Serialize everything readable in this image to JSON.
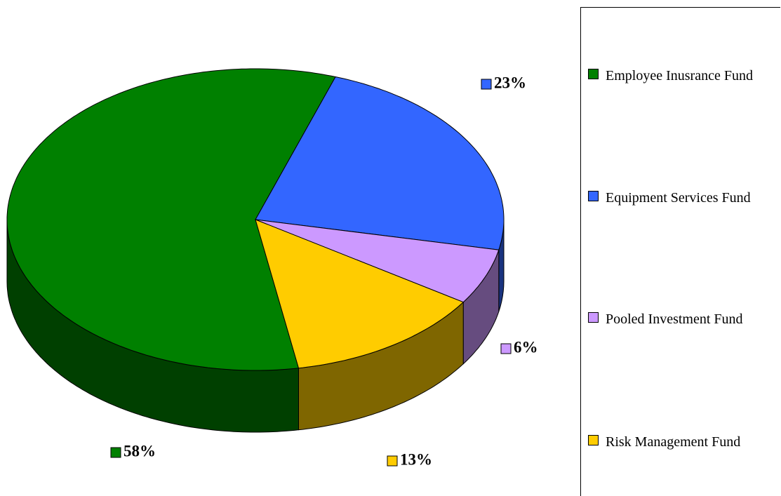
{
  "chart_data": {
    "type": "pie3d",
    "categories": [
      "Employee Inusrance Fund",
      "Equipment Services Fund",
      "Pooled Investment Fund",
      "Risk Management Fund"
    ],
    "values": [
      58,
      23,
      6,
      13
    ],
    "value_labels": [
      "58%",
      "23%",
      "6%",
      "13%"
    ],
    "colors": [
      "#008000",
      "#3366ff",
      "#cc99ff",
      "#ffcc00"
    ],
    "legend": "right"
  }
}
